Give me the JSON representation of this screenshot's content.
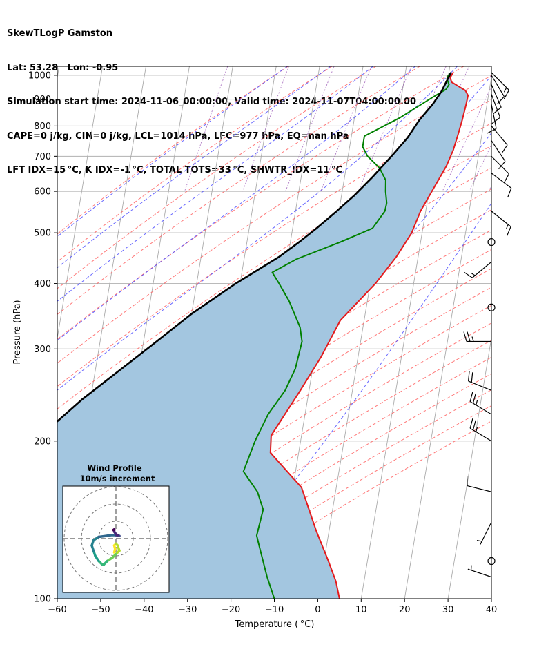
{
  "header": {
    "line1": "SkewTLogP Gamston",
    "line2": "Lat: 53.28   Lon: -0.95",
    "line3": "Simulation start time: 2024-11-06_00:00:00, Valid time: 2024-11-07T04:00:00.00",
    "line4": "CAPE=0 j/kg, CIN=0 j/kg, LCL=1014 hPa, LFC=977 hPa, EQ=nan hPa",
    "line5": "LFT IDX=15 °C, K IDX=-1 °C, TOTAL TOTS=33 °C, SHWTR_IDX=11 °C"
  },
  "chart_data": {
    "type": "line",
    "subtype": "skew-t log-p",
    "xlabel": "Temperature ( °C)",
    "ylabel": "Pressure (hPa)",
    "xlim": [
      -60,
      40
    ],
    "ylim": [
      1040,
      100
    ],
    "yscale": "log",
    "x_ticks": [
      -60,
      -50,
      -40,
      -30,
      -20,
      -10,
      0,
      10,
      20,
      30,
      40
    ],
    "x_tick_labels": [
      "−60",
      "−50",
      "−40",
      "−30",
      "−20",
      "−10",
      "0",
      "10",
      "20",
      "30",
      "40"
    ],
    "y_ticks": [
      1000,
      900,
      800,
      700,
      600,
      500,
      400,
      300,
      200,
      100
    ],
    "y_tick_labels": [
      "1000",
      "900",
      "800",
      "700",
      "600",
      "500",
      "400",
      "300",
      "200",
      "100"
    ],
    "grid": true,
    "colors": {
      "temperature": "#e41a1c",
      "dewpoint": "#008000",
      "parcel": "#000000",
      "fill": "#a3c6e0",
      "dry_adiabat": "#ff6060",
      "moist_adiabat": "#4d4dff",
      "mixing_ratio": "#9b59b6",
      "isotherm": "#aaaaaa"
    },
    "series": [
      {
        "key": "temperature",
        "points": [
          [
            11,
            1012
          ],
          [
            10.5,
            990
          ],
          [
            11,
            970
          ],
          [
            13,
            950
          ],
          [
            14.5,
            935
          ],
          [
            15.3,
            915
          ],
          [
            15.2,
            880
          ],
          [
            14.9,
            820
          ],
          [
            14.5,
            770
          ],
          [
            14,
            720
          ],
          [
            13,
            670
          ],
          [
            11,
            610
          ],
          [
            8.8,
            550
          ],
          [
            7.6,
            500
          ],
          [
            5,
            450
          ],
          [
            1.2,
            400
          ],
          [
            -5.5,
            340
          ],
          [
            -8.5,
            290
          ],
          [
            -12,
            250
          ],
          [
            -17,
            205
          ],
          [
            -16.5,
            190
          ],
          [
            -8,
            163
          ],
          [
            -3,
            135
          ],
          [
            1,
            118
          ],
          [
            3.5,
            108
          ],
          [
            5,
            100
          ]
        ]
      },
      {
        "key": "dewpoint",
        "points": [
          [
            10.5,
            1012
          ],
          [
            10,
            1000
          ],
          [
            9.8,
            985
          ],
          [
            10.5,
            960
          ],
          [
            10,
            940
          ],
          [
            7,
            905
          ],
          [
            0.5,
            830
          ],
          [
            -7,
            765
          ],
          [
            -7,
            730
          ],
          [
            -5.5,
            700
          ],
          [
            -2.3,
            665
          ],
          [
            -0.4,
            630
          ],
          [
            0,
            600
          ],
          [
            0.7,
            570
          ],
          [
            0.6,
            550
          ],
          [
            -1.6,
            510
          ],
          [
            -8.5,
            480
          ],
          [
            -18,
            445
          ],
          [
            -23,
            420
          ],
          [
            -21,
            400
          ],
          [
            -18,
            370
          ],
          [
            -14.5,
            330
          ],
          [
            -13.5,
            310
          ],
          [
            -14,
            275
          ],
          [
            -15.5,
            250
          ],
          [
            -18.5,
            225
          ],
          [
            -20.5,
            200
          ],
          [
            -22,
            175
          ],
          [
            -18,
            160
          ],
          [
            -16,
            148
          ],
          [
            -16.5,
            132
          ],
          [
            -15.5,
            126
          ],
          [
            -12.5,
            110
          ],
          [
            -10,
            100
          ]
        ]
      },
      {
        "key": "parcel",
        "points": [
          [
            10.5,
            1012
          ],
          [
            9,
            930
          ],
          [
            7.5,
            880
          ],
          [
            5,
            820
          ],
          [
            3,
            760
          ],
          [
            0,
            700
          ],
          [
            -3.5,
            640
          ],
          [
            -7,
            590
          ],
          [
            -10.5,
            550
          ],
          [
            -14.5,
            510
          ],
          [
            -18,
            480
          ],
          [
            -22,
            450
          ],
          [
            -31,
            400
          ],
          [
            -40,
            350
          ],
          [
            -47,
            310
          ],
          [
            -54,
            275
          ],
          [
            -62,
            240
          ],
          [
            -68,
            213
          ],
          [
            -79,
            175
          ],
          [
            -85,
            160
          ],
          [
            -92,
            140
          ],
          [
            -99,
            120
          ],
          [
            -106,
            100
          ]
        ]
      }
    ],
    "wind_barbs": [
      {
        "p": 1012,
        "u": -12,
        "v": 12
      },
      {
        "p": 1000,
        "u": -6,
        "v": 10
      },
      {
        "p": 960,
        "u": -3,
        "v": 7
      },
      {
        "p": 920,
        "u": -3,
        "v": 8
      },
      {
        "p": 880,
        "u": -2,
        "v": 10
      },
      {
        "p": 800,
        "u": -5,
        "v": 6
      },
      {
        "p": 750,
        "u": -6,
        "v": 9
      },
      {
        "p": 700,
        "u": -8,
        "v": 8
      },
      {
        "p": 650,
        "u": -8,
        "v": 6
      },
      {
        "p": 550,
        "u": -10,
        "v": 8
      },
      {
        "p": 480,
        "u": 0,
        "v": 0
      },
      {
        "p": 440,
        "u": 12,
        "v": 10
      },
      {
        "p": 360,
        "u": 0,
        "v": 0
      },
      {
        "p": 310,
        "u": 25,
        "v": 0
      },
      {
        "p": 250,
        "u": 20,
        "v": -8
      },
      {
        "p": 225,
        "u": 20,
        "v": -12
      },
      {
        "p": 200,
        "u": 20,
        "v": -12
      },
      {
        "p": 160,
        "u": 12,
        "v": -3
      },
      {
        "p": 140,
        "u": 3,
        "v": 6
      },
      {
        "p": 118,
        "u": 0,
        "v": 0
      },
      {
        "p": 110,
        "u": 6,
        "v": -2
      }
    ],
    "inset": {
      "title": "Wind Profile",
      "subtitle": "10m/s increment",
      "rings_ms": [
        10,
        20,
        30
      ],
      "hodograph_points": [
        [
          -1,
          -8
        ],
        [
          -0.5,
          -6
        ],
        [
          -1,
          -4
        ],
        [
          0,
          -3
        ],
        [
          1,
          -4
        ],
        [
          2,
          -7
        ],
        [
          0,
          -9
        ],
        [
          -2,
          -11
        ],
        [
          -5,
          -13
        ],
        [
          -7,
          -15
        ],
        [
          -8,
          -15
        ],
        [
          -10,
          -13
        ],
        [
          -12,
          -10
        ],
        [
          -13,
          -7
        ],
        [
          -14,
          -4
        ],
        [
          -13,
          -1
        ],
        [
          -10,
          1
        ],
        [
          -6,
          1.5
        ],
        [
          -3,
          2
        ],
        [
          0,
          2
        ],
        [
          2,
          1.5
        ],
        [
          1,
          2
        ],
        [
          0,
          2.5
        ],
        [
          -1,
          4
        ],
        [
          -1,
          5
        ],
        [
          -1,
          5.3
        ],
        [
          -1.5,
          5
        ]
      ]
    }
  }
}
